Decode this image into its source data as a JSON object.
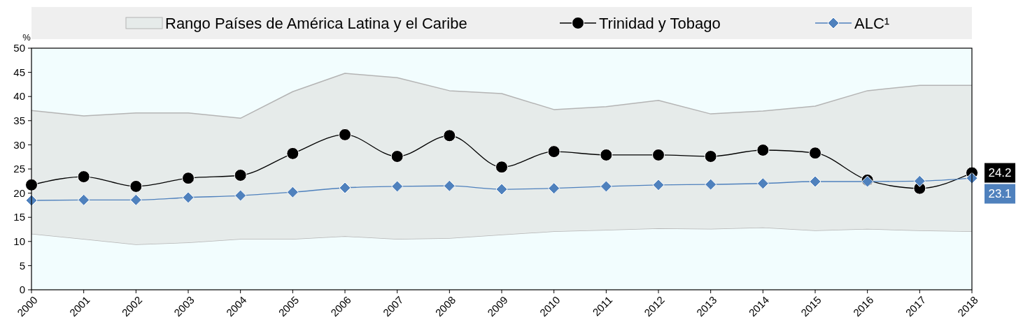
{
  "chart_data": {
    "type": "line",
    "ylabel": "%",
    "x": [
      2000,
      2001,
      2002,
      2003,
      2004,
      2005,
      2006,
      2007,
      2008,
      2009,
      2010,
      2011,
      2012,
      2013,
      2014,
      2015,
      2016,
      2017,
      2018
    ],
    "xlim": [
      2000,
      2018
    ],
    "xticks": [
      2000,
      2001,
      2002,
      2003,
      2004,
      2005,
      2006,
      2007,
      2008,
      2009,
      2010,
      2011,
      2012,
      2013,
      2014,
      2015,
      2016,
      2017,
      2018
    ],
    "ylim": [
      0,
      50
    ],
    "yticks": [
      0,
      5,
      10,
      15,
      20,
      25,
      30,
      35,
      40,
      45,
      50
    ],
    "grid": false,
    "legend": "top",
    "stacked": true,
    "series": [
      {
        "type": "area",
        "color": "#f2fdfe",
        "values": [
          11.6,
          10.5,
          9.4,
          9.8,
          10.5,
          10.5,
          11.1,
          10.5,
          10.7,
          11.4,
          12.1,
          12.4,
          12.7,
          12.6,
          12.9,
          12.3,
          12.6,
          12.3,
          12.1
        ]
      },
      {
        "type": "area",
        "name": "Rango Países de América Latina y el Caribe",
        "color": "#e6ebea",
        "values": [
          25.5,
          25.5,
          27.2,
          26.8,
          25.0,
          30.5,
          33.7,
          33.4,
          30.5,
          29.2,
          25.2,
          25.5,
          26.5,
          23.8,
          24.1,
          25.7,
          28.6,
          30.0,
          30.2
        ]
      },
      {
        "name": "Trinidad y Tobago",
        "color": "#000000",
        "marker": "circle",
        "values": [
          21.7,
          23.4,
          21.4,
          23.1,
          23.7,
          28.2,
          32.1,
          27.6,
          31.9,
          25.4,
          28.6,
          27.9,
          27.9,
          27.6,
          28.9,
          28.3,
          22.7,
          21.0,
          24.2
        ],
        "value_labels": [
          null,
          null,
          null,
          null,
          null,
          null,
          null,
          null,
          null,
          null,
          null,
          null,
          null,
          null,
          null,
          null,
          null,
          null,
          "24.2"
        ]
      },
      {
        "name": "ALC¹",
        "color": "#4f81bd",
        "marker": "diamond",
        "values": [
          18.5,
          18.6,
          18.6,
          19.1,
          19.5,
          20.2,
          21.1,
          21.4,
          21.5,
          20.8,
          21.0,
          21.4,
          21.7,
          21.8,
          22.0,
          22.4,
          22.4,
          22.5,
          23.1
        ],
        "value_labels": [
          null,
          null,
          null,
          null,
          null,
          null,
          null,
          null,
          null,
          null,
          null,
          null,
          null,
          null,
          null,
          null,
          null,
          null,
          "23.1"
        ]
      }
    ]
  }
}
